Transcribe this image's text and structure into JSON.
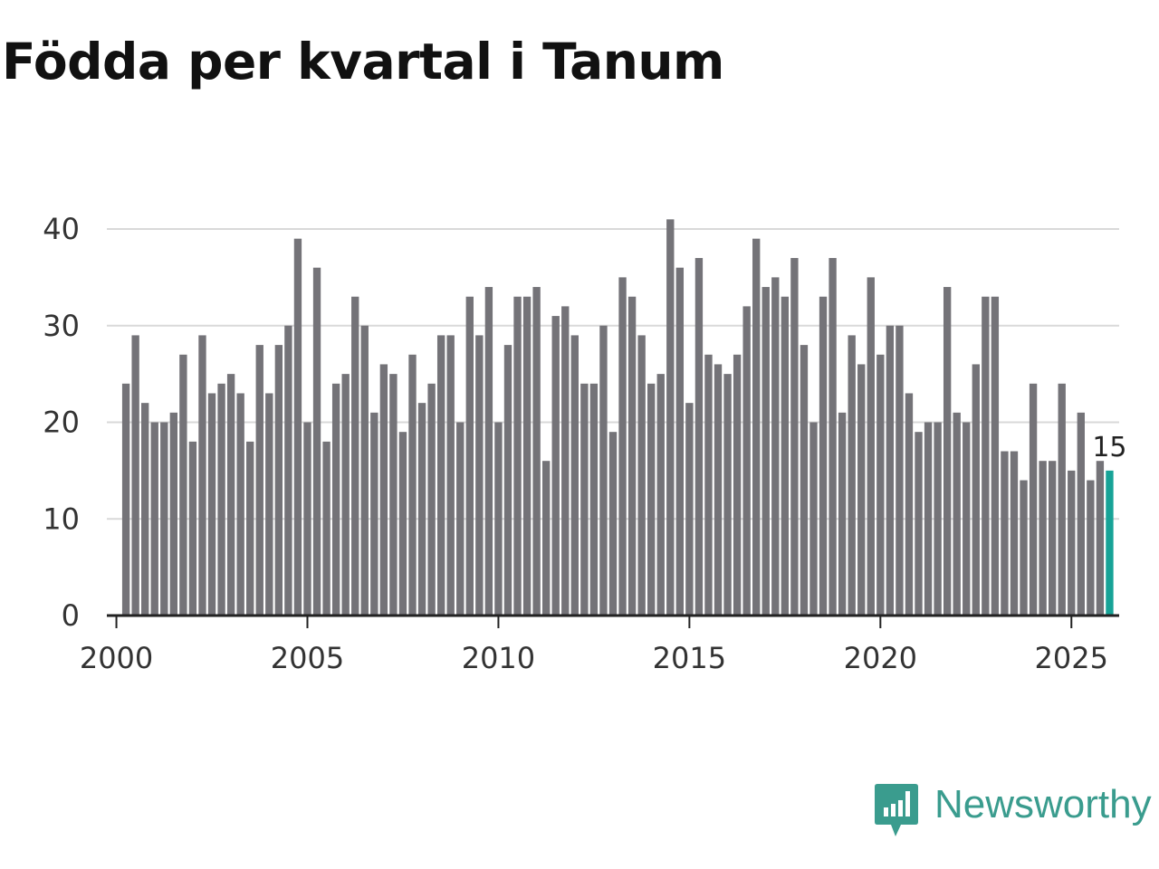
{
  "chart_data": {
    "type": "bar",
    "title": "Födda per kvartal i Tanum",
    "xlabel": "",
    "ylabel": "",
    "x_start": 2000.25,
    "x_step": 0.25,
    "values": [
      24,
      29,
      22,
      20,
      20,
      21,
      27,
      18,
      29,
      23,
      24,
      25,
      23,
      18,
      28,
      23,
      28,
      30,
      39,
      20,
      36,
      18,
      24,
      25,
      33,
      30,
      21,
      26,
      25,
      19,
      27,
      22,
      24,
      29,
      29,
      20,
      33,
      29,
      34,
      20,
      28,
      33,
      33,
      34,
      16,
      31,
      32,
      29,
      24,
      24,
      30,
      19,
      35,
      33,
      29,
      24,
      25,
      41,
      36,
      22,
      37,
      27,
      26,
      25,
      27,
      32,
      39,
      34,
      35,
      33,
      37,
      28,
      20,
      33,
      37,
      21,
      29,
      26,
      35,
      27,
      30,
      30,
      23,
      19,
      20,
      20,
      34,
      21,
      20,
      26,
      33,
      33,
      17,
      17,
      14,
      24,
      16,
      16,
      24,
      15,
      21,
      14,
      16,
      15
    ],
    "highlight_last": true,
    "highlight_label": "15",
    "xticks": [
      "2000",
      "2005",
      "2010",
      "2015",
      "2020",
      "2025"
    ],
    "yticks": [
      "0",
      "10",
      "20",
      "30",
      "40"
    ],
    "xlim": [
      1999.75,
      2026.25
    ],
    "ylim": [
      0,
      40
    ],
    "grid": true,
    "colors": {
      "bar": "#747378",
      "highlight": "#17a397",
      "grid": "#d9d9d9",
      "axis": "#222222"
    }
  },
  "branding": {
    "name": "Newsworthy",
    "icon": "newsworthy-logo-icon",
    "color": "#3a9c8e"
  }
}
